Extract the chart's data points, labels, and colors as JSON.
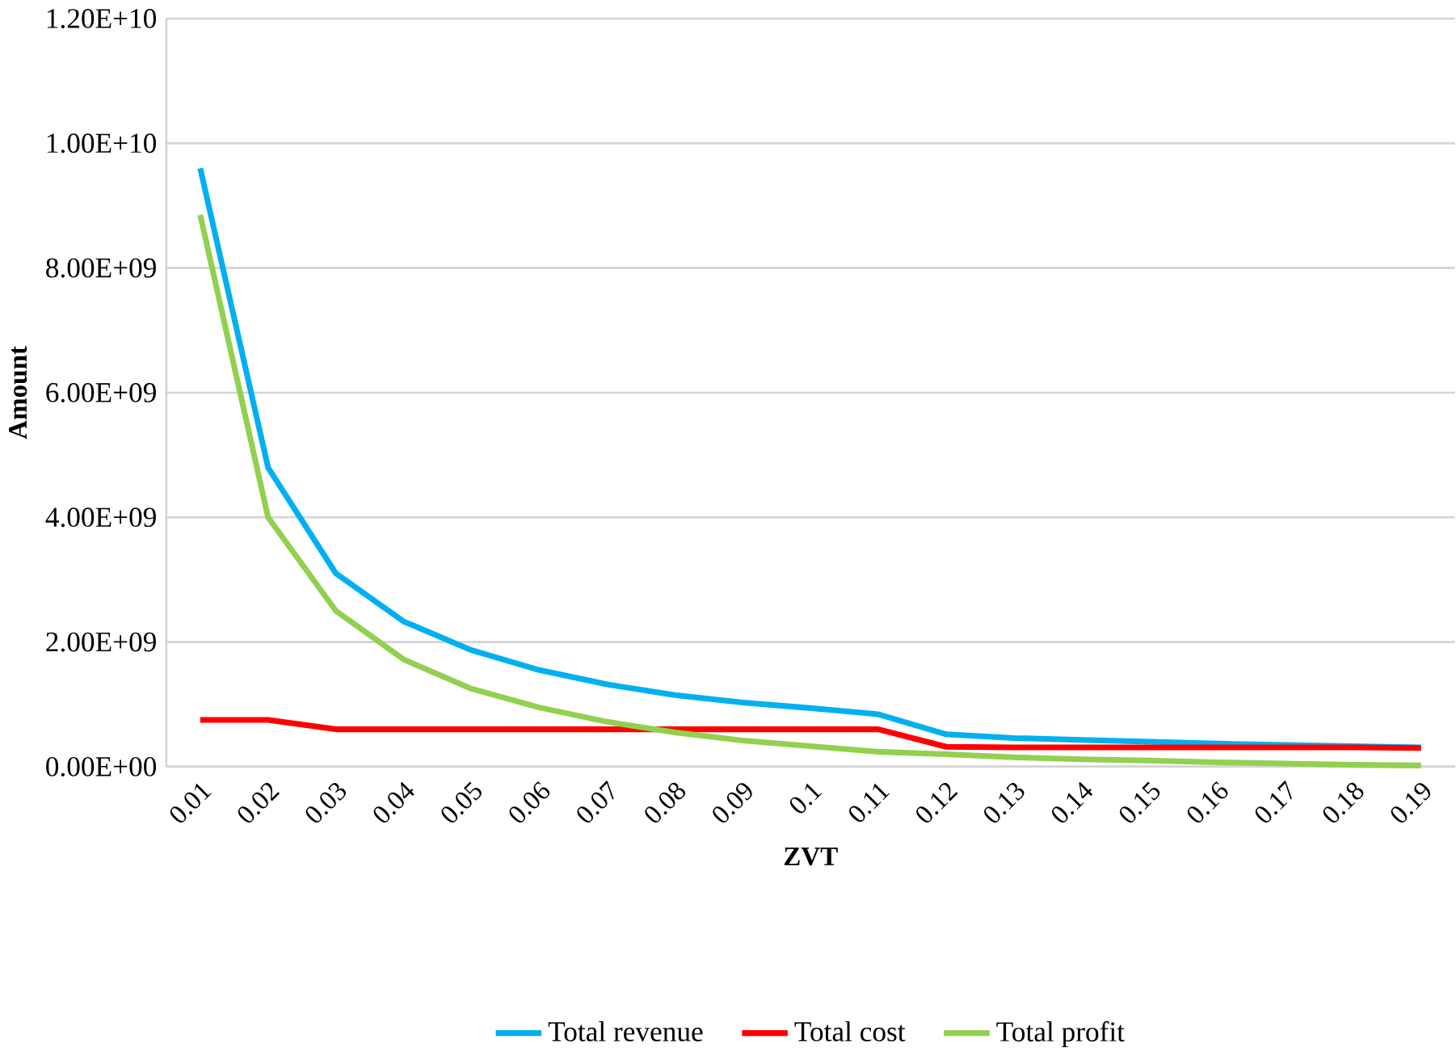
{
  "chart_data": {
    "type": "line",
    "xlabel": "ZVT",
    "ylabel": "Amount",
    "categories": [
      "0.01",
      "0.02",
      "0.03",
      "0.04",
      "0.05",
      "0.06",
      "0.07",
      "0.08",
      "0.09",
      "0.1",
      "0.11",
      "0.12",
      "0.13",
      "0.14",
      "0.15",
      "0.16",
      "0.17",
      "0.18",
      "0.19"
    ],
    "series": [
      {
        "name": "Total revenue",
        "color": "#00b0f0",
        "values": [
          9600000000.0,
          4800000000.0,
          3100000000.0,
          2330000000.0,
          1870000000.0,
          1550000000.0,
          1320000000.0,
          1150000000.0,
          1030000000.0,
          940000000.0,
          840000000.0,
          520000000.0,
          460000000.0,
          430000000.0,
          400000000.0,
          370000000.0,
          350000000.0,
          330000000.0,
          310000000.0
        ]
      },
      {
        "name": "Total cost",
        "color": "#ff0000",
        "values": [
          750000000.0,
          750000000.0,
          600000000.0,
          600000000.0,
          600000000.0,
          600000000.0,
          600000000.0,
          600000000.0,
          600000000.0,
          600000000.0,
          600000000.0,
          320000000.0,
          310000000.0,
          310000000.0,
          310000000.0,
          310000000.0,
          310000000.0,
          310000000.0,
          300000000.0
        ]
      },
      {
        "name": "Total  profit",
        "color": "#92d050",
        "values": [
          8850000000.0,
          4000000000.0,
          2500000000.0,
          1720000000.0,
          1250000000.0,
          950000000.0,
          720000000.0,
          550000000.0,
          420000000.0,
          330000000.0,
          240000000.0,
          200000000.0,
          150000000.0,
          120000000.0,
          100000000.0,
          70000000.0,
          50000000.0,
          30000000.0,
          20000000.0
        ]
      }
    ],
    "ylim": [
      0,
      12000000000.0
    ],
    "yticks": [
      {
        "value": 0,
        "label": "0.00E+00"
      },
      {
        "value": 2000000000.0,
        "label": "2.00E+09"
      },
      {
        "value": 4000000000.0,
        "label": "4.00E+09"
      },
      {
        "value": 6000000000.0,
        "label": "6.00E+09"
      },
      {
        "value": 8000000000.0,
        "label": "8.00E+09"
      },
      {
        "value": 10000000000.0,
        "label": "1.00E+10"
      },
      {
        "value": 12000000000.0,
        "label": "1.20E+10"
      }
    ],
    "grid": "y",
    "legend": "bottom",
    "marker": "none",
    "line_style": "solid"
  }
}
